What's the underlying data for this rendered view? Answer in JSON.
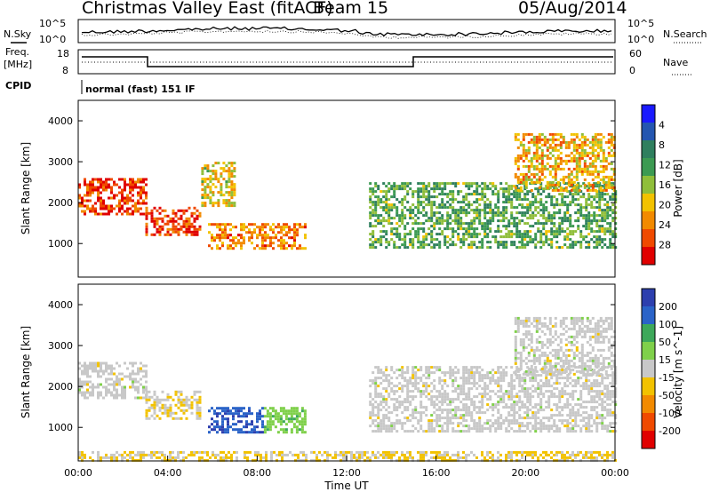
{
  "header": {
    "station": "Christmas Valley East (fitACF)",
    "beam": "Beam 15",
    "date": "05/Aug/2014"
  },
  "noise_panel": {
    "left_label": "N.Sky",
    "right_label": "N.Search",
    "left_ticks": [
      "10^5",
      "10^0"
    ],
    "right_ticks": [
      "10^5",
      "10^0"
    ]
  },
  "freq_panel": {
    "left_label_line1": "Freq.",
    "left_label_line2": "[MHz]",
    "right_label": "Nave",
    "left_ticks": [
      "18",
      "8"
    ],
    "right_ticks": [
      "60",
      "0"
    ]
  },
  "cpid": {
    "label": "CPID",
    "value": "normal (fast) 151 IF"
  },
  "chart_data": [
    {
      "type": "heatmap",
      "parameter": "power",
      "ylabel": "Slant Range [km]",
      "xlabel": "",
      "x_unit": "hours UT",
      "xlim": [
        0,
        24
      ],
      "ylim": [
        180,
        4500
      ],
      "y_ticks": [
        "1000",
        "2000",
        "3000",
        "4000"
      ],
      "colorbar": {
        "label": "Power [dB]",
        "range": [
          0,
          30
        ],
        "ticks": [
          "4",
          "8",
          "12",
          "16",
          "20",
          "24",
          "28"
        ],
        "colors": [
          "#1a1aff",
          "#2456b0",
          "#2f7f5e",
          "#3c9a52",
          "#8fbe3a",
          "#f2c200",
          "#f28a00",
          "#f04a00",
          "#e00000"
        ]
      },
      "echo_regions": [
        {
          "t_start": 0.0,
          "t_end": 3.0,
          "range_start": 1700,
          "range_end": 2600,
          "value_db": 26
        },
        {
          "t_start": 3.0,
          "t_end": 5.5,
          "range_start": 1200,
          "range_end": 1900,
          "value_db": 26
        },
        {
          "t_start": 5.5,
          "t_end": 7.0,
          "range_start": 1900,
          "range_end": 3000,
          "value_db": 18
        },
        {
          "t_start": 5.8,
          "t_end": 10.2,
          "range_start": 900,
          "range_end": 1500,
          "value_db": 22
        },
        {
          "t_start": 13.0,
          "t_end": 24.0,
          "range_start": 900,
          "range_end": 2500,
          "value_db": 12
        },
        {
          "t_start": 19.5,
          "t_end": 24.0,
          "range_start": 2300,
          "range_end": 3700,
          "value_db": 20
        }
      ]
    },
    {
      "type": "heatmap",
      "parameter": "velocity",
      "ylabel": "Slant Range [km]",
      "xlabel": "Time UT",
      "x_unit": "hours UT",
      "xlim": [
        0,
        24
      ],
      "ylim": [
        180,
        4500
      ],
      "x_ticks": [
        "00:00",
        "04:00",
        "08:00",
        "12:00",
        "16:00",
        "20:00",
        "00:00"
      ],
      "y_ticks": [
        "1000",
        "2000",
        "3000",
        "4000"
      ],
      "colorbar": {
        "label": "Velocity [m s^-1]",
        "range": [
          -250,
          250
        ],
        "ticks": [
          "200",
          "100",
          "50",
          "15",
          "-15",
          "-50",
          "-100",
          "-200"
        ],
        "colors": [
          "#2d3fae",
          "#2a63c8",
          "#3da85a",
          "#7fd04a",
          "#c8c8c8",
          "#f2c200",
          "#f28a00",
          "#f04a00",
          "#e00000"
        ]
      },
      "echo_regions": [
        {
          "t_start": 0.0,
          "t_end": 3.0,
          "range_start": 1700,
          "range_end": 2600,
          "value": 0
        },
        {
          "t_start": 3.0,
          "t_end": 5.5,
          "range_start": 1200,
          "range_end": 1900,
          "value": -20
        },
        {
          "t_start": 5.8,
          "t_end": 8.3,
          "range_start": 900,
          "range_end": 1500,
          "value": 180
        },
        {
          "t_start": 8.3,
          "t_end": 10.2,
          "range_start": 900,
          "range_end": 1500,
          "value": 60
        },
        {
          "t_start": 13.0,
          "t_end": 24.0,
          "range_start": 900,
          "range_end": 2500,
          "value": 0
        },
        {
          "t_start": 19.5,
          "t_end": 24.0,
          "range_start": 2300,
          "range_end": 3700,
          "value": 0
        },
        {
          "t_start": 0.0,
          "t_end": 24.0,
          "range_start": 180,
          "range_end": 420,
          "value": -30
        }
      ]
    }
  ]
}
